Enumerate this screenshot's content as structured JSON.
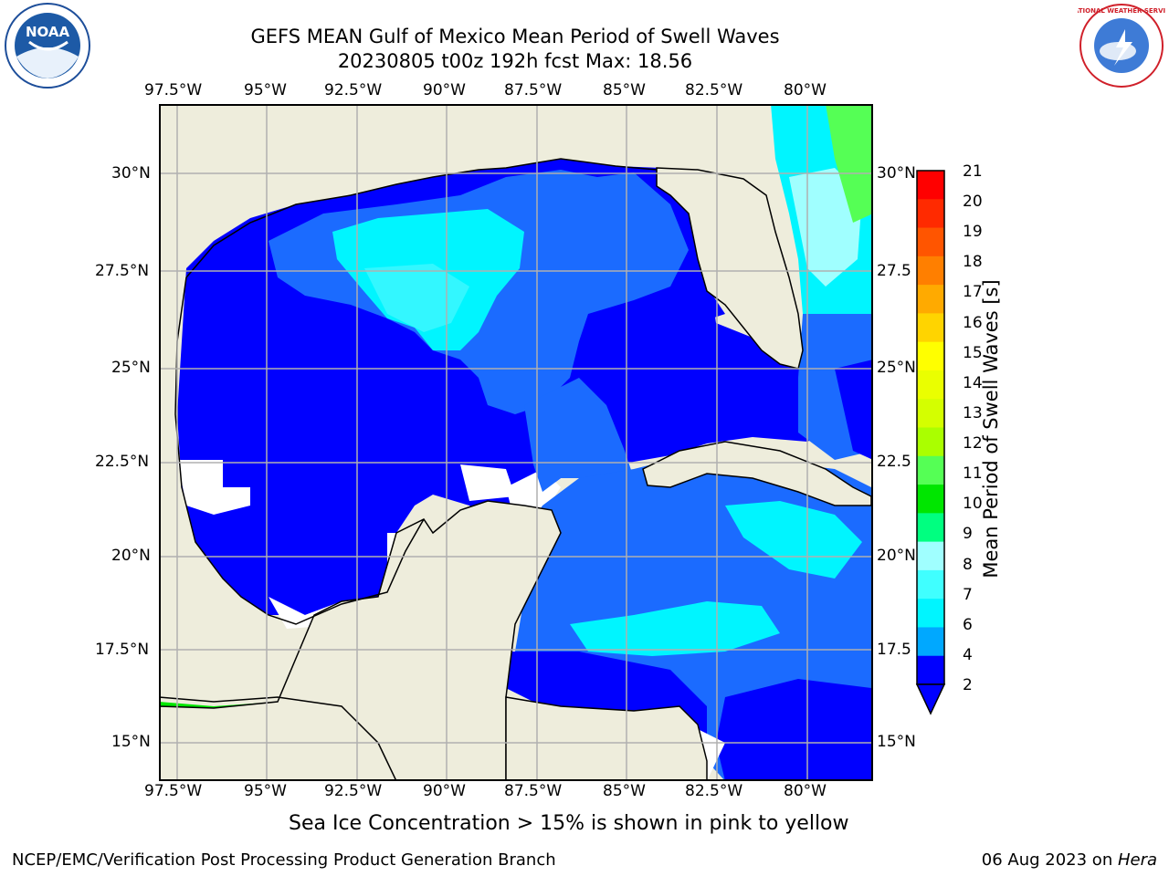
{
  "header": {
    "title_line1": "GEFS MEAN Gulf of Mexico Mean Period of Swell Waves",
    "title_line2": "20230805 t00z 192h fcst   Max: 18.56"
  },
  "map": {
    "lon_labels": [
      "97.5°W",
      "95°W",
      "92.5°W",
      "90°W",
      "87.5°W",
      "85°W",
      "82.5°W",
      "80°W"
    ],
    "lat_labels_left": [
      "30°N",
      "27.5°N",
      "25°N",
      "22.5°N",
      "20°N",
      "17.5°N",
      "15°N"
    ],
    "lat_labels_right": [
      "30°N",
      "27.5",
      "25°N",
      "22.5",
      "20°N",
      "17.5",
      "15°N"
    ],
    "land_color": "#eeeddc",
    "grid_color": "#b0b0b0"
  },
  "colorbar": {
    "label": "Mean Period of Swell Waves [s]",
    "ticks": [
      "21",
      "20",
      "19",
      "18",
      "17",
      "16",
      "15",
      "14",
      "13",
      "12",
      "11",
      "10",
      "9",
      "8",
      "7",
      "6",
      "4",
      "2"
    ],
    "colors": [
      "#ff0000",
      "#ff2a00",
      "#ff5500",
      "#ff7f00",
      "#ffaa00",
      "#ffd400",
      "#ffff00",
      "#eaff00",
      "#d4ff00",
      "#aaff00",
      "#55ff55",
      "#00e600",
      "#00ff80",
      "#a0ffff",
      "#40ffff",
      "#00f5ff",
      "#00a8ff",
      "#0000ff"
    ]
  },
  "logos": {
    "left": {
      "name": "noaa-logo",
      "text": "NOAA"
    },
    "right": {
      "name": "nws-logo",
      "text": "NATIONAL WEATHER SERVICE"
    }
  },
  "caption": "Sea Ice Concentration > 15% is shown in pink to yellow",
  "footer": {
    "left": "NCEP/EMC/Verification Post Processing Product Generation Branch",
    "date": "06 Aug 2023 on ",
    "host": "Hera"
  }
}
